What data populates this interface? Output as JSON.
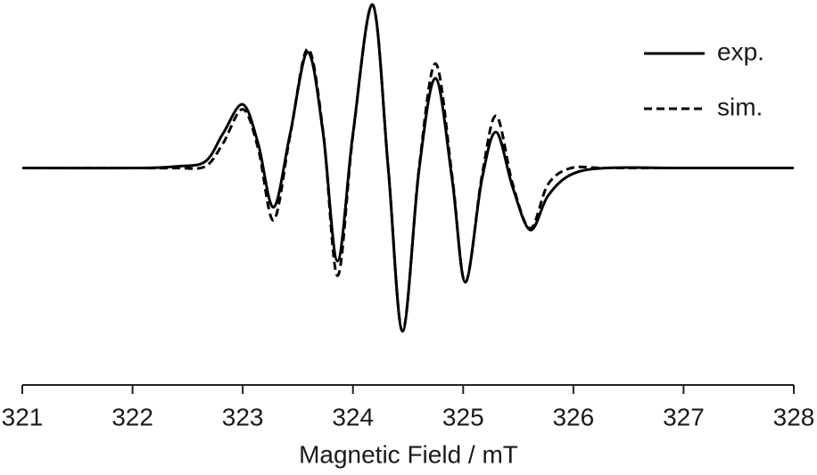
{
  "chart_data": {
    "type": "line",
    "x_label": "Magnetic Field / mT",
    "x": [
      321,
      322,
      322.4,
      322.66,
      322.82,
      323.0,
      323.14,
      323.28,
      323.43,
      323.59,
      323.73,
      323.86,
      324.0,
      324.18,
      324.32,
      324.45,
      324.6,
      324.75,
      324.9,
      325.02,
      325.17,
      325.3,
      325.45,
      325.61,
      325.77,
      325.98,
      326.3,
      327,
      328
    ],
    "series": [
      {
        "name": "exp.",
        "color": "#000000",
        "dash": "solid",
        "values": [
          0,
          0,
          0.01,
          0.04,
          0.21,
          0.39,
          0.15,
          -0.24,
          0.21,
          0.71,
          0.21,
          -0.57,
          0.21,
          1.0,
          0,
          -1.0,
          -0.01,
          0.55,
          -0.07,
          -0.7,
          -0.07,
          0.22,
          -0.12,
          -0.38,
          -0.17,
          -0.04,
          0,
          0,
          0
        ]
      },
      {
        "name": "sim.",
        "color": "#000000",
        "dash": "dashed",
        "values": [
          0,
          0,
          0,
          0.01,
          0.15,
          0.36,
          0.12,
          -0.32,
          0.2,
          0.73,
          0.22,
          -0.66,
          0.2,
          1.0,
          0,
          -1.0,
          0,
          0.64,
          -0.05,
          -0.7,
          -0.05,
          0.32,
          -0.1,
          -0.37,
          -0.1,
          0,
          0,
          0,
          0
        ]
      }
    ],
    "xlim": [
      321,
      328
    ],
    "xticks": [
      321,
      322,
      323,
      324,
      325,
      326,
      327,
      328
    ],
    "ylim": [
      -1.33,
      1.03
    ],
    "legend": "upper right"
  }
}
